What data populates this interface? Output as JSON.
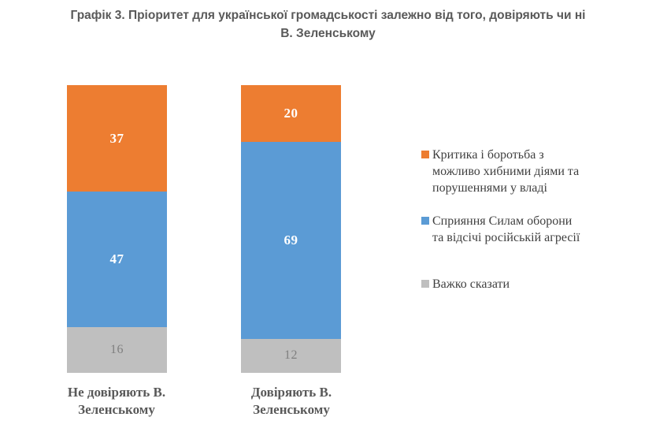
{
  "title": {
    "line1": "Графік 3. Пріоритет для української громадськості залежно від того, довіряють чи ні",
    "line2": "В. Зеленському",
    "full": "Графік 3. Пріоритет для української громадськості залежно від того, довіряють чи ні В. Зеленському"
  },
  "chart_data": {
    "type": "bar",
    "subtype": "stacked-column-100-percent",
    "value_unit": "percent",
    "axes_visible": false,
    "grid": false,
    "legend_position": "right",
    "categories": [
      {
        "label": "Не довіряють В. Зеленському",
        "label_lines": [
          "Не довіряють В.",
          "Зеленському"
        ]
      },
      {
        "label": "Довіряють В. Зеленському",
        "label_lines": [
          "Довіряють В.",
          "Зеленському"
        ]
      }
    ],
    "series": [
      {
        "name": "Критика і боротьба з можливо хибними діями та порушеннями у владі",
        "label_lines": [
          "Критика і боротьба з",
          "можливо хибними діями та",
          "порушеннями у владі"
        ],
        "color": "#ED7D31",
        "value_label_color": "#FFFFFF",
        "values": [
          37,
          20
        ]
      },
      {
        "name": "Сприяння Силам оборони та відсічі російській агресії",
        "label_lines": [
          "Сприяння Силам оборони",
          "та відсічі російській агресії"
        ],
        "color": "#5B9BD5",
        "value_label_color": "#FFFFFF",
        "values": [
          47,
          69
        ]
      },
      {
        "name": "Важко сказати",
        "label_lines": [
          "Важко сказати"
        ],
        "color": "#BFBFBF",
        "value_label_color": "#7F7F7F",
        "values": [
          16,
          12
        ]
      }
    ],
    "stack_order_top_to_bottom": [
      "Критика і боротьба з можливо хибними діями та порушеннями у владі",
      "Сприяння Силам оборони та відсічі російській агресії",
      "Важко сказати"
    ]
  },
  "colors": {
    "background": "#FFFFFF",
    "title_text": "#595959",
    "category_label_text": "#595959",
    "legend_text": "#404040",
    "orange": "#ED7D31",
    "blue": "#5B9BD5",
    "gray": "#BFBFBF"
  }
}
